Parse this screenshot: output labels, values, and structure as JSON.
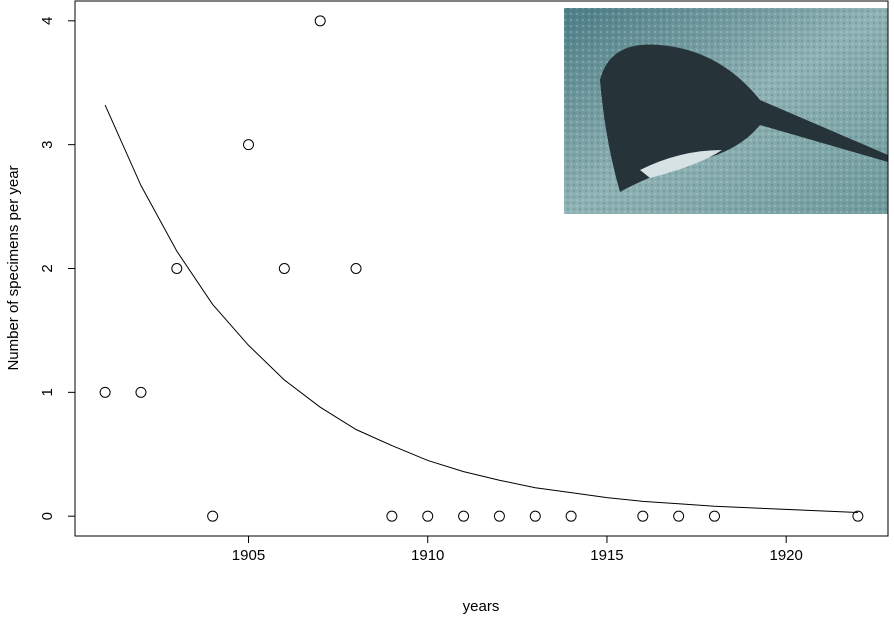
{
  "chart_data": {
    "type": "scatter",
    "xlabel": "years",
    "ylabel": "Number of specimens per year",
    "x": [
      1901,
      1902,
      1903,
      1904,
      1905,
      1906,
      1907,
      1908,
      1909,
      1910,
      1911,
      1912,
      1913,
      1914,
      1916,
      1917,
      1918,
      1922
    ],
    "values": [
      1,
      1,
      2,
      0,
      3,
      2,
      4,
      2,
      0,
      0,
      0,
      0,
      0,
      0,
      0,
      0,
      0,
      0
    ],
    "color": "#000000",
    "curve": {
      "x": [
        1901,
        1902,
        1903,
        1904,
        1905,
        1906,
        1907,
        1908,
        1909,
        1910,
        1911,
        1912,
        1913,
        1914,
        1915,
        1916,
        1917,
        1918,
        1922
      ],
      "values": [
        3.32,
        2.67,
        2.14,
        1.71,
        1.38,
        1.1,
        0.88,
        0.7,
        0.57,
        0.45,
        0.36,
        0.29,
        0.23,
        0.19,
        0.15,
        0.12,
        0.1,
        0.08,
        0.03
      ],
      "color": "#000000"
    },
    "xlim": [
      1900.16,
      1922.84
    ],
    "ylim": [
      -0.16,
      4.16
    ],
    "xticks": [
      1905,
      1910,
      1915,
      1920
    ],
    "yticks": [
      0,
      1,
      2,
      3,
      4
    ]
  }
}
